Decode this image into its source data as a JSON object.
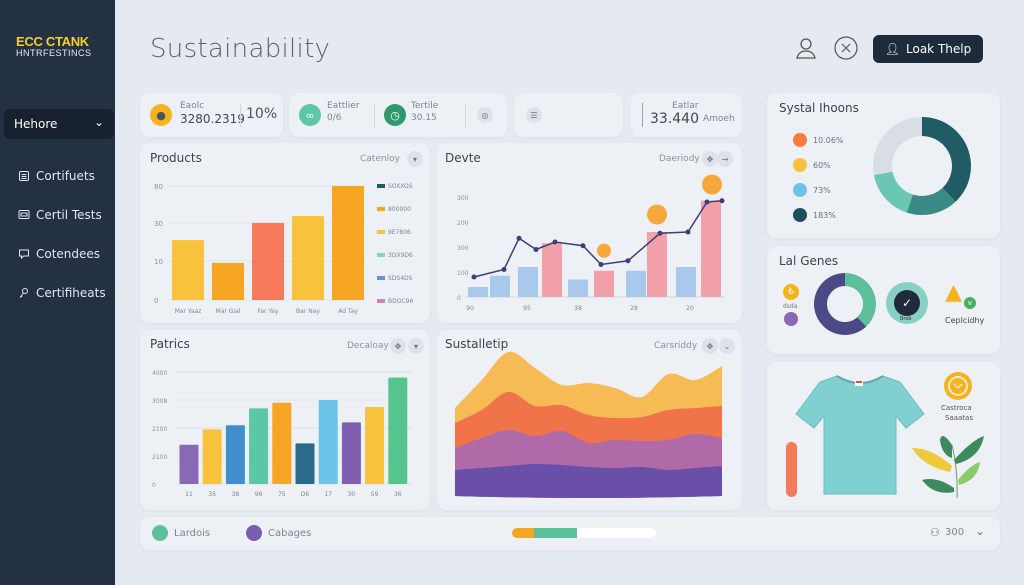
{
  "sidebar": {
    "logo_line1": "ECC CTANK",
    "logo_line2": "HNTRFESTINCS",
    "dropdown": "Hehore",
    "items": [
      {
        "label": "Cortifuets",
        "icon": "document-icon"
      },
      {
        "label": "Certil Tests",
        "icon": "monitor-icon"
      },
      {
        "label": "Cotendees",
        "icon": "chat-icon"
      },
      {
        "label": "Certifiheats",
        "icon": "key-icon"
      }
    ]
  },
  "header": {
    "title": "Sustainability",
    "help_button": "Loak Thelp"
  },
  "stats": [
    {
      "label": "Eaolc",
      "value": "3280.2319",
      "percent": "10%"
    },
    {
      "label": "Eattlier",
      "value": "0/6"
    },
    {
      "label": "Tertile",
      "value": "30.15"
    },
    {
      "label": "Eatlar",
      "value": "33.440",
      "unit": "Amoeh"
    }
  ],
  "colors": {
    "sidebar": "#243044",
    "accent_dark": "#1f2b3d",
    "yellow": "#f9c23c",
    "orange": "#f6a623",
    "coral": "#f77b5a",
    "teal": "#1f5c63",
    "mint": "#5cc19a",
    "purple": "#6f5aa6"
  },
  "chart_data": [
    {
      "type": "bar",
      "title": "Products",
      "control": "Catenloy",
      "tick_labels": [
        "0",
        "10",
        "30",
        "80"
      ],
      "tick_values": [
        0,
        10,
        30,
        80
      ],
      "categories": [
        "Mar Yaaz",
        "Mar Gial",
        "Far Yay",
        "Bar Nay",
        "Ad Tay"
      ],
      "values": [
        21,
        9.5,
        30,
        39.5,
        80
      ],
      "colors": [
        "#f9c23c",
        "#f6a623",
        "#f77b5a",
        "#f9c23c",
        "#f6a623"
      ],
      "legend": [
        {
          "label": "SOXXOS",
          "color": "#1f5c63"
        },
        {
          "label": "800000",
          "color": "#f6a623"
        },
        {
          "label": "9E7806",
          "color": "#f9c23c"
        },
        {
          "label": "3DX9D6",
          "color": "#7dd8c6"
        },
        {
          "label": "SDS4DS",
          "color": "#6e8fd8"
        },
        {
          "label": "BDOC96",
          "color": "#d47fb8"
        }
      ]
    },
    {
      "type": "bar+line",
      "title": "Devte",
      "control": "Daeriody",
      "tick_labels": [
        "0",
        "100",
        "300",
        "200",
        "300"
      ],
      "ylim": [
        0,
        400
      ],
      "x_labels": [
        "90",
        "95",
        "38",
        "28",
        "20"
      ],
      "bars": [
        40,
        85,
        120,
        215,
        70,
        105,
        105,
        260,
        120,
        385
      ],
      "bar_colors": [
        "#a9c9ec",
        "#a9c9ec",
        "#a9c9ec",
        "#f2a0aa",
        "#a9c9ec",
        "#f2a0aa",
        "#a9c9ec",
        "#f2a0aa",
        "#a9c9ec",
        "#f2a0aa"
      ],
      "line": [
        80,
        110,
        235,
        190,
        220,
        205,
        130,
        145,
        255,
        260,
        380,
        385
      ],
      "markers": [
        185,
        330,
        450
      ]
    },
    {
      "type": "bar",
      "title": "Patrics",
      "control": "Decaloay",
      "tick_labels": [
        "0",
        "2100",
        "2100",
        "3008",
        "4000"
      ],
      "ylim": [
        0,
        4000
      ],
      "categories": [
        "11",
        "35",
        "38",
        "96",
        "75",
        "D6",
        "17",
        "30",
        "59",
        "36"
      ],
      "values": [
        1400,
        1950,
        2100,
        2700,
        2900,
        1450,
        3000,
        2200,
        2750,
        3800
      ],
      "colors": [
        "#8a68b8",
        "#f9c23c",
        "#3f8fcf",
        "#5cc7a4",
        "#f6a623",
        "#2a6a8a",
        "#6cc3e8",
        "#7f5fb0",
        "#f9c23c",
        "#55c48e"
      ]
    },
    {
      "type": "area",
      "title": "Sustalletip",
      "control": "Carsriddy",
      "stacked": true,
      "series": [
        {
          "values": [
            22,
            24,
            26,
            28,
            27,
            25,
            24,
            25,
            22,
            24,
            26
          ],
          "color": "#6a4fa8"
        },
        {
          "values": [
            22,
            30,
            36,
            28,
            34,
            24,
            28,
            26,
            30,
            34,
            28
          ],
          "color": "#b06aa8"
        },
        {
          "values": [
            25,
            28,
            38,
            30,
            26,
            28,
            22,
            24,
            30,
            26,
            32
          ],
          "color": "#f0734a"
        },
        {
          "values": [
            15,
            30,
            40,
            38,
            20,
            32,
            30,
            20,
            36,
            28,
            40
          ],
          "color": "#f7bb55"
        }
      ]
    },
    {
      "type": "pie",
      "title": "Systal Ihoons",
      "donut": true,
      "legend": [
        {
          "label": "10.06%",
          "color": "#f77b3a"
        },
        {
          "label": "60%",
          "color": "#f9c23c"
        },
        {
          "label": "73%",
          "color": "#6cc3e8"
        },
        {
          "label": "183%",
          "color": "#1f4f5e"
        }
      ],
      "slices": [
        {
          "value": 38,
          "color": "#1f5c63"
        },
        {
          "value": 17,
          "color": "#3a8a86"
        },
        {
          "value": 17,
          "color": "#6cc6b4"
        },
        {
          "value": 28,
          "color": "#d9dee5"
        }
      ]
    },
    {
      "type": "pie",
      "title": "Lal Genes",
      "donut": true,
      "slices": [
        {
          "value": 38,
          "color": "#5cc19a"
        },
        {
          "value": 62,
          "color": "#4a4a86"
        }
      ],
      "labels": {
        "left": "dsda",
        "check": "Brob",
        "alert": "Ceplcidhy"
      }
    }
  ],
  "promo": {
    "line1": "Castroca",
    "line2": "Saaatas"
  },
  "footer": {
    "legend": [
      {
        "label": "Lardois",
        "color": "#5cc19a"
      },
      {
        "label": "Cabages",
        "color": "#7a5cb0"
      }
    ],
    "progress": [
      {
        "fraction": 0.15,
        "color": "#f6a623"
      },
      {
        "fraction": 0.3,
        "color": "#5cc19a"
      }
    ],
    "count": "300"
  }
}
